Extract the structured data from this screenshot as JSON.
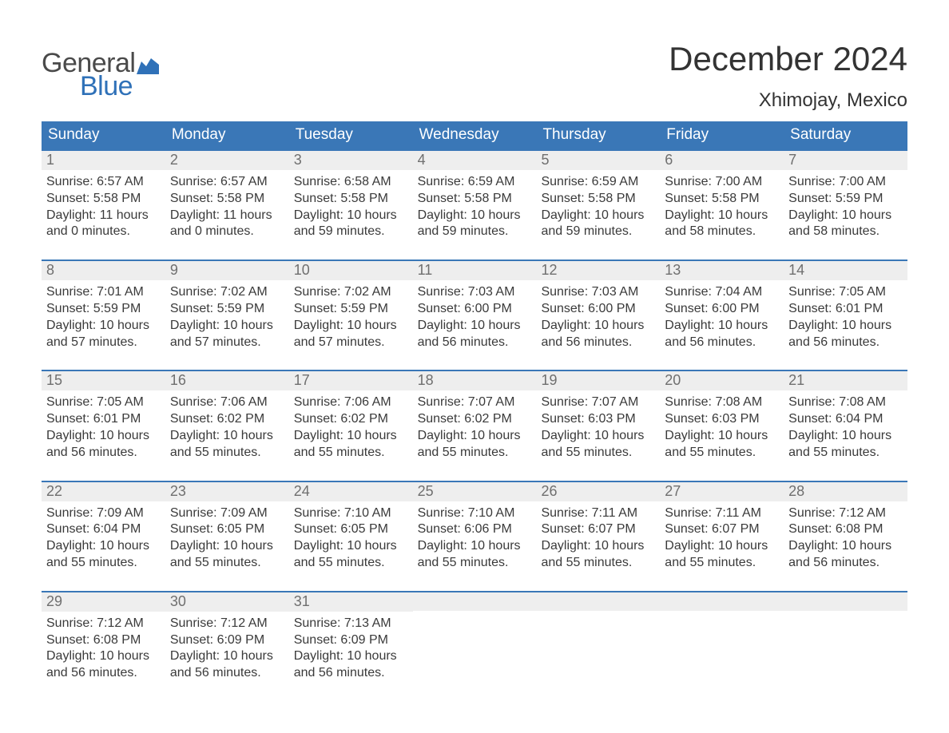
{
  "brand": {
    "word1": "General",
    "word2": "Blue",
    "flag_color": "#2f71b8"
  },
  "title": "December 2024",
  "location": "Xhimojay, Mexico",
  "colors": {
    "header_bg": "#3a77b7",
    "header_text": "#ffffff",
    "daynum_bg": "#eeeeee",
    "daynum_text": "#6f6f6f",
    "body_text": "#3a3a3a",
    "rule": "#3a77b7",
    "page_bg": "#ffffff"
  },
  "weekdays": [
    "Sunday",
    "Monday",
    "Tuesday",
    "Wednesday",
    "Thursday",
    "Friday",
    "Saturday"
  ],
  "weeks": [
    [
      {
        "n": "1",
        "sunrise": "Sunrise: 6:57 AM",
        "sunset": "Sunset: 5:58 PM",
        "day1": "Daylight: 11 hours",
        "day2": "and 0 minutes."
      },
      {
        "n": "2",
        "sunrise": "Sunrise: 6:57 AM",
        "sunset": "Sunset: 5:58 PM",
        "day1": "Daylight: 11 hours",
        "day2": "and 0 minutes."
      },
      {
        "n": "3",
        "sunrise": "Sunrise: 6:58 AM",
        "sunset": "Sunset: 5:58 PM",
        "day1": "Daylight: 10 hours",
        "day2": "and 59 minutes."
      },
      {
        "n": "4",
        "sunrise": "Sunrise: 6:59 AM",
        "sunset": "Sunset: 5:58 PM",
        "day1": "Daylight: 10 hours",
        "day2": "and 59 minutes."
      },
      {
        "n": "5",
        "sunrise": "Sunrise: 6:59 AM",
        "sunset": "Sunset: 5:58 PM",
        "day1": "Daylight: 10 hours",
        "day2": "and 59 minutes."
      },
      {
        "n": "6",
        "sunrise": "Sunrise: 7:00 AM",
        "sunset": "Sunset: 5:58 PM",
        "day1": "Daylight: 10 hours",
        "day2": "and 58 minutes."
      },
      {
        "n": "7",
        "sunrise": "Sunrise: 7:00 AM",
        "sunset": "Sunset: 5:59 PM",
        "day1": "Daylight: 10 hours",
        "day2": "and 58 minutes."
      }
    ],
    [
      {
        "n": "8",
        "sunrise": "Sunrise: 7:01 AM",
        "sunset": "Sunset: 5:59 PM",
        "day1": "Daylight: 10 hours",
        "day2": "and 57 minutes."
      },
      {
        "n": "9",
        "sunrise": "Sunrise: 7:02 AM",
        "sunset": "Sunset: 5:59 PM",
        "day1": "Daylight: 10 hours",
        "day2": "and 57 minutes."
      },
      {
        "n": "10",
        "sunrise": "Sunrise: 7:02 AM",
        "sunset": "Sunset: 5:59 PM",
        "day1": "Daylight: 10 hours",
        "day2": "and 57 minutes."
      },
      {
        "n": "11",
        "sunrise": "Sunrise: 7:03 AM",
        "sunset": "Sunset: 6:00 PM",
        "day1": "Daylight: 10 hours",
        "day2": "and 56 minutes."
      },
      {
        "n": "12",
        "sunrise": "Sunrise: 7:03 AM",
        "sunset": "Sunset: 6:00 PM",
        "day1": "Daylight: 10 hours",
        "day2": "and 56 minutes."
      },
      {
        "n": "13",
        "sunrise": "Sunrise: 7:04 AM",
        "sunset": "Sunset: 6:00 PM",
        "day1": "Daylight: 10 hours",
        "day2": "and 56 minutes."
      },
      {
        "n": "14",
        "sunrise": "Sunrise: 7:05 AM",
        "sunset": "Sunset: 6:01 PM",
        "day1": "Daylight: 10 hours",
        "day2": "and 56 minutes."
      }
    ],
    [
      {
        "n": "15",
        "sunrise": "Sunrise: 7:05 AM",
        "sunset": "Sunset: 6:01 PM",
        "day1": "Daylight: 10 hours",
        "day2": "and 56 minutes."
      },
      {
        "n": "16",
        "sunrise": "Sunrise: 7:06 AM",
        "sunset": "Sunset: 6:02 PM",
        "day1": "Daylight: 10 hours",
        "day2": "and 55 minutes."
      },
      {
        "n": "17",
        "sunrise": "Sunrise: 7:06 AM",
        "sunset": "Sunset: 6:02 PM",
        "day1": "Daylight: 10 hours",
        "day2": "and 55 minutes."
      },
      {
        "n": "18",
        "sunrise": "Sunrise: 7:07 AM",
        "sunset": "Sunset: 6:02 PM",
        "day1": "Daylight: 10 hours",
        "day2": "and 55 minutes."
      },
      {
        "n": "19",
        "sunrise": "Sunrise: 7:07 AM",
        "sunset": "Sunset: 6:03 PM",
        "day1": "Daylight: 10 hours",
        "day2": "and 55 minutes."
      },
      {
        "n": "20",
        "sunrise": "Sunrise: 7:08 AM",
        "sunset": "Sunset: 6:03 PM",
        "day1": "Daylight: 10 hours",
        "day2": "and 55 minutes."
      },
      {
        "n": "21",
        "sunrise": "Sunrise: 7:08 AM",
        "sunset": "Sunset: 6:04 PM",
        "day1": "Daylight: 10 hours",
        "day2": "and 55 minutes."
      }
    ],
    [
      {
        "n": "22",
        "sunrise": "Sunrise: 7:09 AM",
        "sunset": "Sunset: 6:04 PM",
        "day1": "Daylight: 10 hours",
        "day2": "and 55 minutes."
      },
      {
        "n": "23",
        "sunrise": "Sunrise: 7:09 AM",
        "sunset": "Sunset: 6:05 PM",
        "day1": "Daylight: 10 hours",
        "day2": "and 55 minutes."
      },
      {
        "n": "24",
        "sunrise": "Sunrise: 7:10 AM",
        "sunset": "Sunset: 6:05 PM",
        "day1": "Daylight: 10 hours",
        "day2": "and 55 minutes."
      },
      {
        "n": "25",
        "sunrise": "Sunrise: 7:10 AM",
        "sunset": "Sunset: 6:06 PM",
        "day1": "Daylight: 10 hours",
        "day2": "and 55 minutes."
      },
      {
        "n": "26",
        "sunrise": "Sunrise: 7:11 AM",
        "sunset": "Sunset: 6:07 PM",
        "day1": "Daylight: 10 hours",
        "day2": "and 55 minutes."
      },
      {
        "n": "27",
        "sunrise": "Sunrise: 7:11 AM",
        "sunset": "Sunset: 6:07 PM",
        "day1": "Daylight: 10 hours",
        "day2": "and 55 minutes."
      },
      {
        "n": "28",
        "sunrise": "Sunrise: 7:12 AM",
        "sunset": "Sunset: 6:08 PM",
        "day1": "Daylight: 10 hours",
        "day2": "and 56 minutes."
      }
    ],
    [
      {
        "n": "29",
        "sunrise": "Sunrise: 7:12 AM",
        "sunset": "Sunset: 6:08 PM",
        "day1": "Daylight: 10 hours",
        "day2": "and 56 minutes."
      },
      {
        "n": "30",
        "sunrise": "Sunrise: 7:12 AM",
        "sunset": "Sunset: 6:09 PM",
        "day1": "Daylight: 10 hours",
        "day2": "and 56 minutes."
      },
      {
        "n": "31",
        "sunrise": "Sunrise: 7:13 AM",
        "sunset": "Sunset: 6:09 PM",
        "day1": "Daylight: 10 hours",
        "day2": "and 56 minutes."
      },
      {
        "empty": true
      },
      {
        "empty": true
      },
      {
        "empty": true
      },
      {
        "empty": true
      }
    ]
  ]
}
